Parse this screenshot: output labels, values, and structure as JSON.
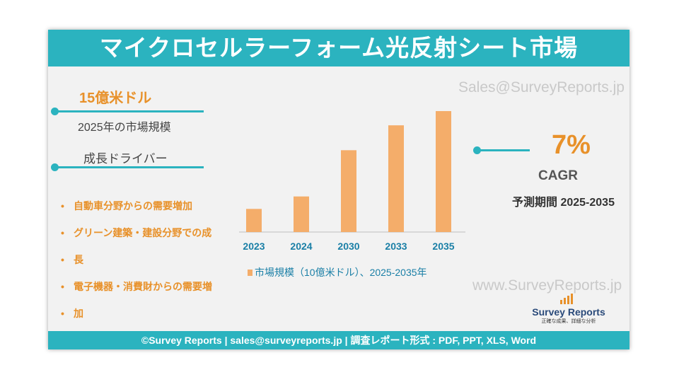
{
  "header": {
    "title": "マイクロセルラーフォーム光反射シート市場"
  },
  "left": {
    "market_size_value": "15億米ドル",
    "market_size_label": "2025年の市場規模",
    "drivers_heading": "成長ドライバー",
    "drivers": [
      "自動車分野からの需要増加",
      "グリーン建築・建設分野での成",
      "長",
      "電子機器・消費財からの需要増",
      "加"
    ]
  },
  "right": {
    "cagr_value": "7%",
    "cagr_label": "CAGR",
    "forecast_period": "予測期間 2025-2035"
  },
  "watermarks": {
    "top": "Sales@SurveyReports.jp",
    "bottom": "www.SurveyReports.jp"
  },
  "logo": {
    "name": "Survey Reports",
    "tagline": "正確な成果、詳細な分析"
  },
  "footer": {
    "text": "©Survey Reports | sales@surveyreports.jp |  調査レポート形式 : PDF, PPT, XLS, Word"
  },
  "colors": {
    "accent": "#2bb3bf",
    "bar": "#f4ad6a",
    "highlight": "#e8912a"
  },
  "chart_data": {
    "type": "bar",
    "categories": [
      "2023",
      "2024",
      "2030",
      "2033",
      "2035"
    ],
    "series": [
      {
        "name": "市場規模（10億米ドル）、2025-2035年",
        "values": [
          1.3,
          2.0,
          4.6,
          6.0,
          6.8
        ]
      }
    ],
    "ylim": [
      0,
      7
    ],
    "legend_position": "bottom"
  }
}
